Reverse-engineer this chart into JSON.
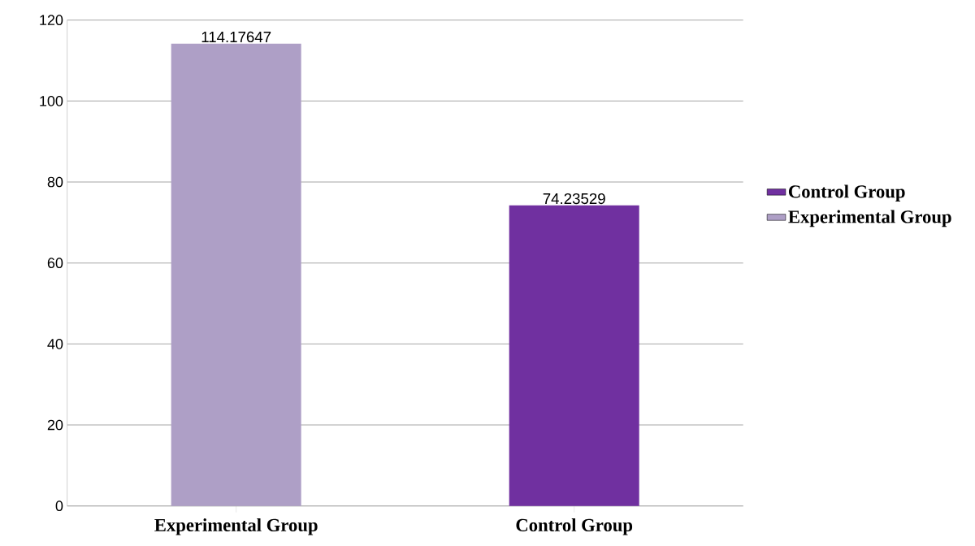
{
  "chart_data": {
    "type": "bar",
    "categories": [
      "Experimental Group",
      "Control Group"
    ],
    "series": [
      {
        "name": "Experimental Group",
        "color": "#ae9fc6",
        "values": [
          114.17647,
          null
        ]
      },
      {
        "name": "Control Group",
        "color": "#7030a0",
        "values": [
          null,
          74.23529
        ]
      }
    ],
    "ylim": [
      0,
      120
    ],
    "yticks": [
      0,
      20,
      40,
      60,
      80,
      100,
      120
    ],
    "grid": "y",
    "legend": "right",
    "data_labels": true
  }
}
